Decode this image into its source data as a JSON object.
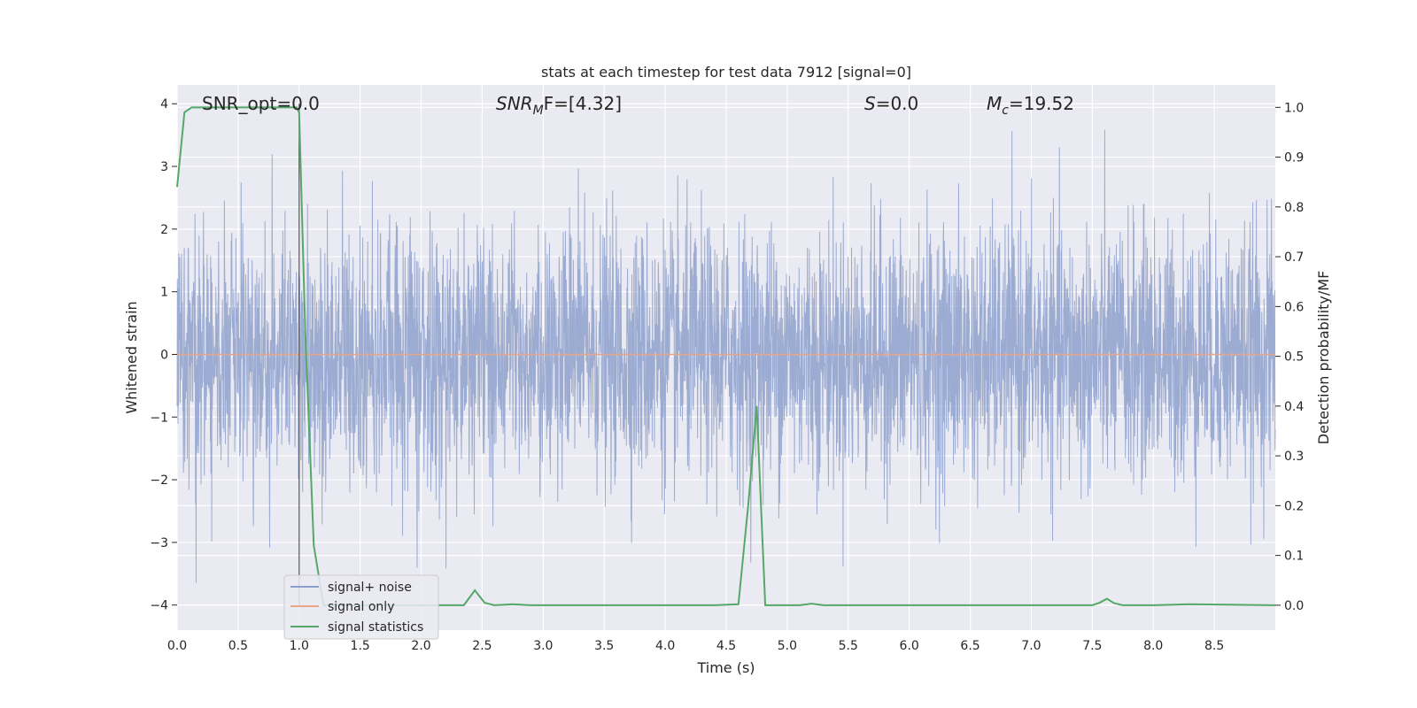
{
  "chart_data": {
    "type": "line",
    "title": "stats at each timestep for test data 7912 [signal=0]",
    "xlabel": "Time (s)",
    "ylabel": "Whitened strain",
    "ylabel_right": "Detection probability/MF",
    "xlim": [
      0,
      9.0
    ],
    "ylim": [
      -4.4,
      4.3
    ],
    "ylim_right": [
      -0.05,
      1.045
    ],
    "x_ticks": [
      "0.0",
      "0.5",
      "1.0",
      "1.5",
      "2.0",
      "2.5",
      "3.0",
      "3.5",
      "4.0",
      "4.5",
      "5.0",
      "5.5",
      "6.0",
      "6.5",
      "7.0",
      "7.5",
      "8.0",
      "8.5"
    ],
    "y_ticks": [
      "4",
      "3",
      "2",
      "1",
      "0",
      "−1",
      "−2",
      "−3",
      "−4"
    ],
    "y_ticks_right": [
      "1.0",
      "0.9",
      "0.8",
      "0.7",
      "0.6",
      "0.5",
      "0.4",
      "0.3",
      "0.2",
      "0.1",
      "0.0"
    ],
    "grid": true,
    "legend_position": "lower-left",
    "annotations": {
      "snr_opt": "SNR_opt=0.0",
      "snr_mf_base": "SNR",
      "snr_mf_sub": "M",
      "snr_mf_tail": "F=[4.32]",
      "s_main": "S",
      "s_tail": "=0.0",
      "mc_main": "M",
      "mc_sub": "c",
      "mc_tail": "=19.52"
    },
    "vline_x": 1.0,
    "series": [
      {
        "name": "signal+ noise",
        "color": "#8da0cb",
        "axis": "left",
        "envelope_stats": {
          "mean": 0.0,
          "std": 1.0,
          "max": 3.9,
          "min": -4.0
        },
        "note_values": "dense noise trace, approx. 9000 samples"
      },
      {
        "name": "signal only",
        "color": "#e8a58a",
        "axis": "left",
        "values_constant": 0.0
      },
      {
        "name": "signal statistics",
        "color": "#55a868",
        "axis": "right",
        "x": [
          0.0,
          0.06,
          0.12,
          0.2,
          0.4,
          0.6,
          0.8,
          0.98,
          1.0,
          1.05,
          1.12,
          1.2,
          1.4,
          1.6,
          2.0,
          2.2,
          2.35,
          2.44,
          2.52,
          2.6,
          2.75,
          2.9,
          3.5,
          4.0,
          4.4,
          4.6,
          4.68,
          4.75,
          4.82,
          4.9,
          5.0,
          5.1,
          5.2,
          5.3,
          6.0,
          7.0,
          7.5,
          7.56,
          7.62,
          7.68,
          7.75,
          8.0,
          8.3,
          9.0
        ],
        "y": [
          0.84,
          0.99,
          1.0,
          1.0,
          1.0,
          1.0,
          1.0,
          1.0,
          0.99,
          0.55,
          0.12,
          0.0,
          0.0,
          0.0,
          0.0,
          0.0,
          0.0,
          0.03,
          0.005,
          0.0,
          0.002,
          0.0,
          0.0,
          0.0,
          0.0,
          0.002,
          0.2,
          0.4,
          0.0,
          0.0,
          0.0,
          0.0,
          0.003,
          0.0,
          0.0,
          0.0,
          0.0,
          0.005,
          0.013,
          0.004,
          0.0,
          0.0,
          0.002,
          0.0
        ]
      }
    ]
  }
}
